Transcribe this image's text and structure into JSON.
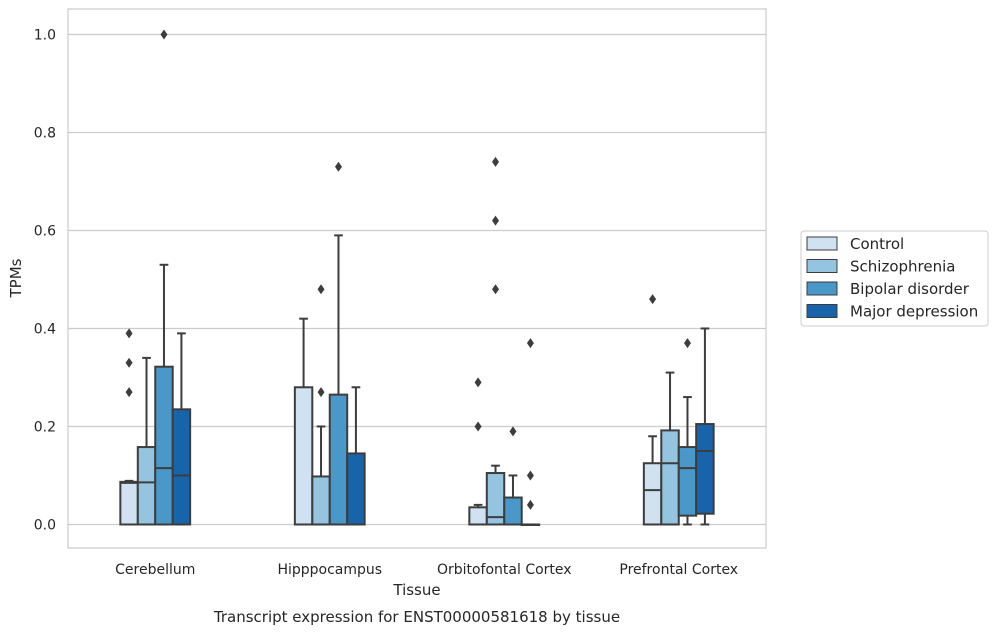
{
  "chart_data": {
    "type": "box",
    "title": "",
    "caption": "Transcript expression for ENST00000581618 by tissue",
    "xlabel": "Tissue",
    "ylabel": "TPMs",
    "ylim": [
      -0.048,
      1.052
    ],
    "yticks": [
      0.0,
      0.2,
      0.4,
      0.6,
      0.8,
      1.0
    ],
    "ytick_labels": [
      "0.0",
      "0.2",
      "0.4",
      "0.6",
      "0.8",
      "1.0"
    ],
    "grid": true,
    "legend_position": "right",
    "categories": [
      "Cerebellum",
      "Hipppocampus",
      "Orbitofontal Cortex",
      "Prefrontal Cortex"
    ],
    "series": [
      {
        "name": "Control",
        "color": "#d0e1f2",
        "boxes": [
          {
            "whisker_low": 0.0,
            "q1": 0.0,
            "median": 0.085,
            "q3": 0.087,
            "whisker_high": 0.089,
            "outliers": [
              0.27,
              0.33,
              0.39
            ]
          },
          {
            "whisker_low": 0.0,
            "q1": 0.0,
            "median": 0.0,
            "q3": 0.28,
            "whisker_high": 0.42,
            "outliers": []
          },
          {
            "whisker_low": 0.0,
            "q1": 0.0,
            "median": 0.0,
            "q3": 0.035,
            "whisker_high": 0.04,
            "outliers": [
              0.2,
              0.29
            ]
          },
          {
            "whisker_low": 0.0,
            "q1": 0.0,
            "median": 0.07,
            "q3": 0.125,
            "whisker_high": 0.18,
            "outliers": [
              0.46
            ]
          }
        ]
      },
      {
        "name": "Schizophrenia",
        "color": "#94c4df",
        "boxes": [
          {
            "whisker_low": 0.0,
            "q1": 0.0,
            "median": 0.086,
            "q3": 0.158,
            "whisker_high": 0.34,
            "outliers": []
          },
          {
            "whisker_low": 0.0,
            "q1": 0.0,
            "median": 0.0,
            "q3": 0.098,
            "whisker_high": 0.2,
            "outliers": [
              0.27,
              0.48
            ]
          },
          {
            "whisker_low": 0.0,
            "q1": 0.0,
            "median": 0.015,
            "q3": 0.105,
            "whisker_high": 0.12,
            "outliers": [
              0.48,
              0.62,
              0.74
            ]
          },
          {
            "whisker_low": 0.0,
            "q1": 0.0,
            "median": 0.125,
            "q3": 0.192,
            "whisker_high": 0.31,
            "outliers": []
          }
        ]
      },
      {
        "name": "Bipolar disorder",
        "color": "#4a98c9",
        "boxes": [
          {
            "whisker_low": 0.0,
            "q1": 0.0,
            "median": 0.115,
            "q3": 0.322,
            "whisker_high": 0.53,
            "outliers": [
              1.0
            ]
          },
          {
            "whisker_low": 0.0,
            "q1": 0.0,
            "median": 0.0,
            "q3": 0.265,
            "whisker_high": 0.59,
            "outliers": [
              0.73
            ]
          },
          {
            "whisker_low": 0.0,
            "q1": 0.0,
            "median": 0.0,
            "q3": 0.055,
            "whisker_high": 0.1,
            "outliers": [
              0.19
            ]
          },
          {
            "whisker_low": 0.0,
            "q1": 0.018,
            "median": 0.115,
            "q3": 0.158,
            "whisker_high": 0.26,
            "outliers": [
              0.37
            ]
          }
        ]
      },
      {
        "name": "Major depression",
        "color": "#1764ab",
        "boxes": [
          {
            "whisker_low": 0.0,
            "q1": 0.0,
            "median": 0.1,
            "q3": 0.235,
            "whisker_high": 0.39,
            "outliers": []
          },
          {
            "whisker_low": 0.0,
            "q1": 0.0,
            "median": 0.0,
            "q3": 0.145,
            "whisker_high": 0.28,
            "outliers": []
          },
          {
            "whisker_low": 0.0,
            "q1": 0.0,
            "median": 0.0,
            "q3": 0.0,
            "whisker_high": 0.0,
            "outliers": [
              0.04,
              0.1,
              0.37
            ]
          },
          {
            "whisker_low": 0.0,
            "q1": 0.022,
            "median": 0.15,
            "q3": 0.205,
            "whisker_high": 0.4,
            "outliers": []
          }
        ]
      }
    ]
  }
}
